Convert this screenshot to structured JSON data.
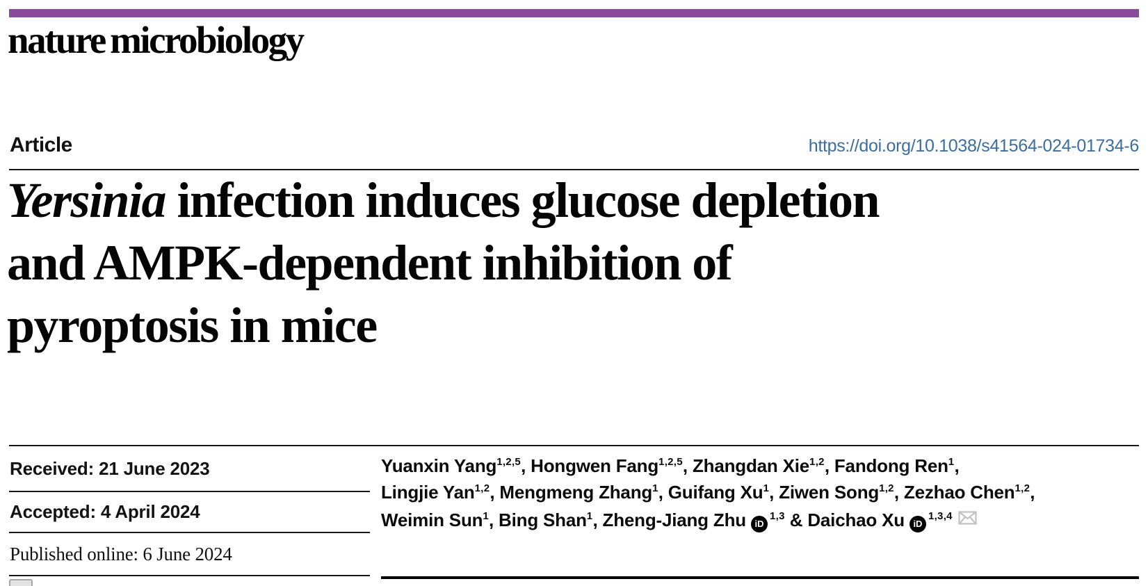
{
  "masthead": {
    "journal_name": "nature microbiology",
    "accent_bar_color": "#8a4a9b"
  },
  "article_bar": {
    "article_type": "Article",
    "doi_link": "https://doi.org/10.1038/s41564-024-01734-6",
    "doi_color": "#3c6d9f"
  },
  "title": {
    "line1_italic": "Yersinia",
    "line1_rest": " infection induces glucose depletion",
    "line2": "and AMPK-dependent inhibition of",
    "line3": "pyroptosis in mice"
  },
  "history": {
    "received": "Received: 21 June 2023",
    "accepted": "Accepted: 4 April 2024",
    "published": "Published online: 6 June 2024"
  },
  "icons": {
    "orcid_text": "iD",
    "envelope_color": "#c2c2c2"
  },
  "authors": {
    "lines": [
      [
        {
          "name": "Yuanxin Yang",
          "sup": "1,2,5",
          "sep": ", "
        },
        {
          "name": "Hongwen Fang",
          "sup": "1,2,5",
          "sep": ", "
        },
        {
          "name": "Zhangdan Xie",
          "sup": "1,2",
          "sep": ", "
        },
        {
          "name": "Fandong Ren",
          "sup": "1",
          "sep": ","
        }
      ],
      [
        {
          "name": "Lingjie Yan",
          "sup": "1,2",
          "sep": ", "
        },
        {
          "name": "Mengmeng Zhang",
          "sup": "1",
          "sep": ", "
        },
        {
          "name": "Guifang Xu",
          "sup": "1",
          "sep": ", "
        },
        {
          "name": "Ziwen Song",
          "sup": "1,2",
          "sep": ", "
        },
        {
          "name": "Zezhao Chen",
          "sup": "1,2",
          "sep": ","
        }
      ],
      [
        {
          "name": "Weimin Sun",
          "sup": "1",
          "sep": ", "
        },
        {
          "name": "Bing Shan",
          "sup": "1",
          "sep": ", "
        },
        {
          "name": "Zheng-Jiang Zhu",
          "orcid": true,
          "sup": "1,3",
          "sep": " & "
        },
        {
          "name": "Daichao Xu",
          "orcid": true,
          "sup": "1,3,4",
          "envelope": true,
          "sep": ""
        }
      ]
    ]
  }
}
